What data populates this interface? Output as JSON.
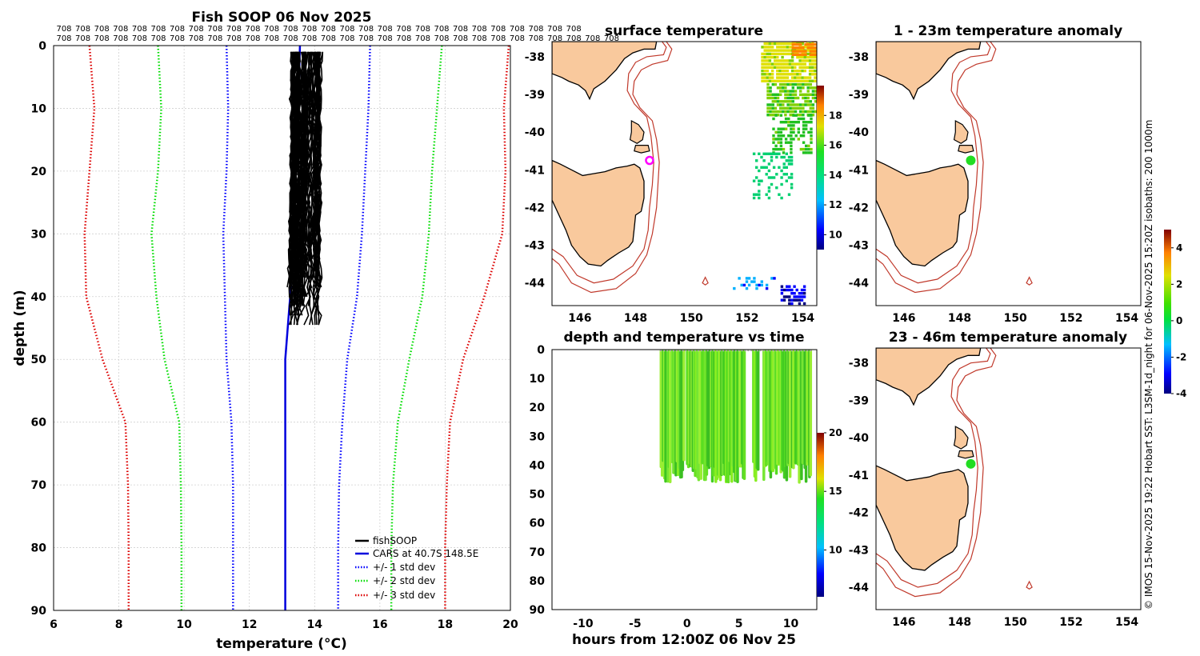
{
  "chart_data": [
    {
      "id": "profile",
      "type": "line",
      "title": "Fish SOOP 06 Nov 2025",
      "xlabel": "temperature (°C)",
      "ylabel": "depth (m)",
      "xlim": [
        6,
        20
      ],
      "ylim": [
        0,
        90
      ],
      "x_ticks": [
        "6",
        "8",
        "10",
        "12",
        "14",
        "16",
        "18",
        "20"
      ],
      "y_ticks": [
        "0",
        "10",
        "20",
        "30",
        "40",
        "50",
        "60",
        "70",
        "80",
        "90"
      ],
      "depth_levels": [
        0,
        10,
        20,
        30,
        40,
        50,
        60,
        70,
        80,
        90
      ],
      "top_label": "708",
      "series": [
        {
          "name": "fishSOOP",
          "color": "#000000",
          "style": "solid",
          "temp_range": [
            13.3,
            14.2
          ],
          "depth_range": [
            1,
            46
          ]
        },
        {
          "name": "CARS at 40.7S 148.5E",
          "color": "#0000dd",
          "style": "solid",
          "depth": [
            0,
            10,
            20,
            30,
            40,
            50,
            60,
            70,
            80,
            90
          ],
          "temp": [
            13.55,
            13.5,
            13.42,
            13.35,
            13.25,
            13.1,
            13.1,
            13.1,
            13.1,
            13.1
          ]
        },
        {
          "name": "+/- 1 std dev",
          "color": "#0000ff",
          "style": "dotted",
          "depth": [
            0,
            10,
            20,
            30,
            40,
            50,
            60,
            70,
            80,
            90
          ],
          "low": [
            11.3,
            11.35,
            11.3,
            11.2,
            11.25,
            11.3,
            11.45,
            11.5,
            11.5,
            11.5
          ],
          "high": [
            15.7,
            15.65,
            15.55,
            15.45,
            15.3,
            15.0,
            14.85,
            14.75,
            14.72,
            14.72
          ]
        },
        {
          "name": "+/- 2 std dev",
          "color": "#00dd00",
          "style": "dotted",
          "depth": [
            0,
            10,
            20,
            30,
            40,
            50,
            60,
            70,
            80,
            90
          ],
          "low": [
            9.2,
            9.3,
            9.2,
            9.0,
            9.15,
            9.4,
            9.85,
            9.9,
            9.92,
            9.92
          ],
          "high": [
            17.9,
            17.75,
            17.6,
            17.5,
            17.3,
            16.9,
            16.55,
            16.4,
            16.35,
            16.35
          ]
        },
        {
          "name": "+/- 3 std dev",
          "color": "#dd0000",
          "style": "dotted",
          "depth": [
            0,
            10,
            20,
            30,
            40,
            50,
            60,
            70,
            80,
            90
          ],
          "low": [
            7.1,
            7.25,
            7.1,
            6.95,
            7.0,
            7.5,
            8.2,
            8.28,
            8.3,
            8.3
          ],
          "high": [
            19.95,
            19.8,
            19.85,
            19.75,
            19.2,
            18.55,
            18.15,
            18.05,
            18.0,
            18.0
          ]
        }
      ]
    },
    {
      "id": "sst",
      "type": "heatmap",
      "title": "surface temperature",
      "xlim": [
        145,
        154.5
      ],
      "ylim": [
        -44.6,
        -37.6
      ],
      "x_ticks": [
        "146",
        "148",
        "150",
        "152",
        "154"
      ],
      "y_ticks": [
        "-38",
        "-39",
        "-40",
        "-41",
        "-42",
        "-43",
        "-44"
      ],
      "colorbar": {
        "range": [
          9,
          20
        ],
        "ticks": [
          "10",
          "12",
          "14",
          "16",
          "18"
        ]
      },
      "marker": {
        "lon": 148.5,
        "lat": -40.75,
        "shape": "circle",
        "color": "#ff00ff"
      }
    },
    {
      "id": "anom_shallow",
      "type": "heatmap",
      "title": "1 - 23m temperature anomaly",
      "xlim": [
        145,
        154.5
      ],
      "ylim": [
        -44.6,
        -37.6
      ],
      "x_ticks": [
        "146",
        "148",
        "150",
        "152",
        "154"
      ],
      "y_ticks": [
        "-38",
        "-39",
        "-40",
        "-41",
        "-42",
        "-43",
        "-44"
      ],
      "point": {
        "lon": 148.4,
        "lat": -40.75,
        "anomaly": 0.2
      }
    },
    {
      "id": "depth_time",
      "type": "scatter",
      "title": "depth and temperature vs time",
      "xlabel": "hours from 12:00Z 06 Nov 25",
      "xlim": [
        -13,
        12.5
      ],
      "ylim": [
        0,
        90
      ],
      "x_ticks": [
        "-10",
        "-5",
        "0",
        "5",
        "10"
      ],
      "y_ticks": [
        "0",
        "10",
        "20",
        "30",
        "40",
        "50",
        "60",
        "70",
        "80",
        "90"
      ],
      "time_range": [
        -2.5,
        12
      ],
      "depth_range": [
        0,
        46
      ],
      "colorbar": {
        "range": [
          6,
          20
        ],
        "ticks": [
          "10",
          "15",
          "20"
        ]
      }
    },
    {
      "id": "anom_deep",
      "type": "heatmap",
      "title": "23 - 46m temperature anomaly",
      "xlim": [
        145,
        154.5
      ],
      "ylim": [
        -44.6,
        -37.6
      ],
      "x_ticks": [
        "146",
        "148",
        "150",
        "152",
        "154"
      ],
      "y_ticks": [
        "-38",
        "-39",
        "-40",
        "-41",
        "-42",
        "-43",
        "-44"
      ],
      "point": {
        "lon": 148.4,
        "lat": -40.7,
        "anomaly": 0.1
      },
      "colorbar": {
        "range": [
          -4,
          5
        ],
        "ticks": [
          "-4",
          "-2",
          "0",
          "2",
          "4"
        ]
      }
    }
  ],
  "credit": "© IMOS 15-Nov-2025 19:22 Hobart SST: L3SM-1d_night for 06-Nov-2025 15:20Z isobaths: 200  1000m",
  "colors": {
    "land": "#f9c99d",
    "coast": "#000000",
    "isobath": "#c0392b"
  }
}
